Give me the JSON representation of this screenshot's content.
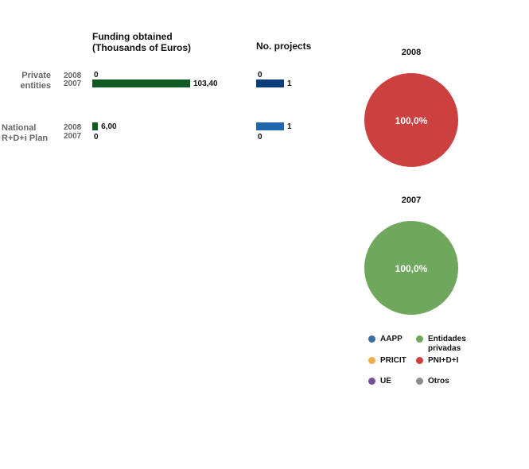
{
  "headers": {
    "funding": "Funding obtained (Thousands of Euros)",
    "projects": "No. projects"
  },
  "colors": {
    "funding_bar": "#0f5a23",
    "projects_2008": "#2166ac",
    "projects_2007": "#0b3d7a",
    "pie_pni": "#cc4140",
    "pie_private": "#6fa75c"
  },
  "chart_data": [
    {
      "type": "bar",
      "orientation": "horizontal",
      "title": "Funding obtained (Thousands of Euros)",
      "categories": [
        "Private entities",
        "National R+D+i Plan"
      ],
      "series": [
        {
          "name": "2008",
          "values": [
            0,
            6.0
          ],
          "labels": [
            "0",
            "6,00"
          ]
        },
        {
          "name": "2007",
          "values": [
            103.4,
            0
          ],
          "labels": [
            "103,40",
            "0"
          ]
        }
      ]
    },
    {
      "type": "bar",
      "orientation": "horizontal",
      "title": "No. projects",
      "categories": [
        "Private entities",
        "National R+D+i Plan"
      ],
      "series": [
        {
          "name": "2008",
          "values": [
            0,
            1
          ],
          "labels": [
            "0",
            "1"
          ]
        },
        {
          "name": "2007",
          "values": [
            1,
            0
          ],
          "labels": [
            "1",
            "0"
          ]
        }
      ]
    },
    {
      "type": "pie",
      "title": "2008",
      "slices": [
        {
          "name": "PNI+D+I",
          "value": 100.0,
          "label": "100,0%",
          "color": "#cc4140"
        }
      ]
    },
    {
      "type": "pie",
      "title": "2007",
      "slices": [
        {
          "name": "Entidades privadas",
          "value": 100.0,
          "label": "100,0%",
          "color": "#6fa75c"
        }
      ]
    }
  ],
  "legend": [
    {
      "label": "AAPP",
      "color": "#3a6ea5"
    },
    {
      "label": "Entidades privadas",
      "color": "#6fa75c"
    },
    {
      "label": "PRICIT",
      "color": "#f0ad4e"
    },
    {
      "label": "PNI+D+I",
      "color": "#cc4140"
    },
    {
      "label": "UE",
      "color": "#7a4f9a"
    },
    {
      "label": "Otros",
      "color": "#8c8c8c"
    }
  ]
}
